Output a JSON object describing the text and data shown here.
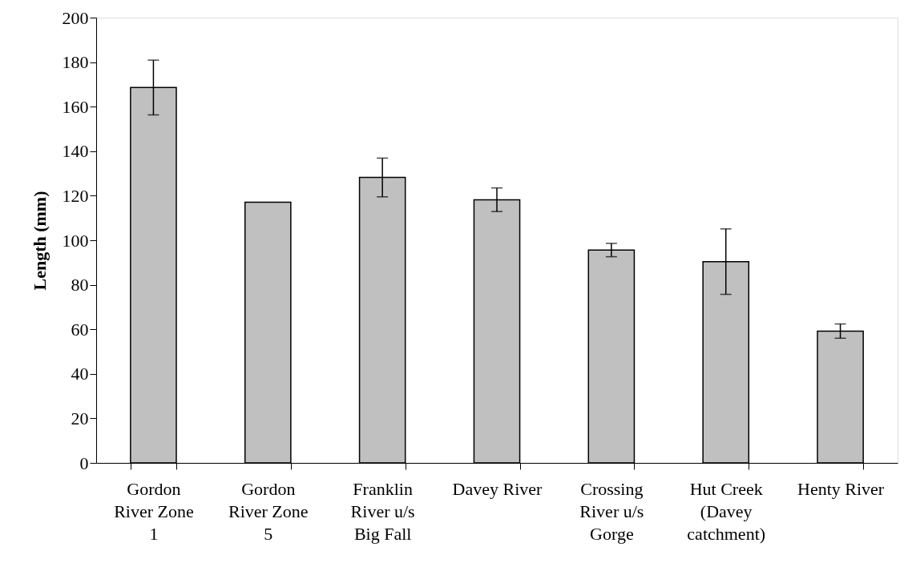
{
  "chart_data": {
    "type": "bar",
    "ylabel": "Length (mm)",
    "categories": [
      "Gordon River Zone 1",
      "Gordon River Zone 5",
      "Franklin River u/s Big Fall",
      "Davey River",
      "Crossing River u/s Gorge",
      "Hut Creek (Davey catchment)",
      "Henty River"
    ],
    "values": [
      168.6,
      117.1,
      128.2,
      118.2,
      95.6,
      90.4,
      59.2
    ],
    "errors": [
      12.3,
      null,
      8.7,
      5.3,
      3.0,
      14.7,
      3.2
    ],
    "color": "#c0c0c0",
    "ylim": [
      0,
      200
    ],
    "yticks": [
      0,
      20,
      40,
      60,
      80,
      100,
      120,
      140,
      160,
      180,
      200
    ],
    "grid": false
  }
}
